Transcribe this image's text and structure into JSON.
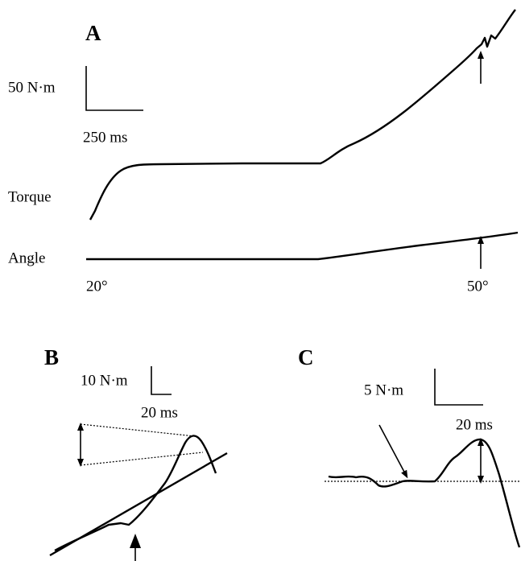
{
  "panels": [
    {
      "label": "A",
      "scale_y": "50 N·m",
      "scale_x": "250 ms",
      "torque_label": "Torque",
      "angle_label": "Angle",
      "angle_start": "20°",
      "angle_end": "50°"
    },
    {
      "label": "B",
      "scale_y": "10 N·m",
      "scale_x": "20 ms"
    },
    {
      "label": "C",
      "scale_y": "5 N·m",
      "scale_x": "20 ms"
    }
  ]
}
